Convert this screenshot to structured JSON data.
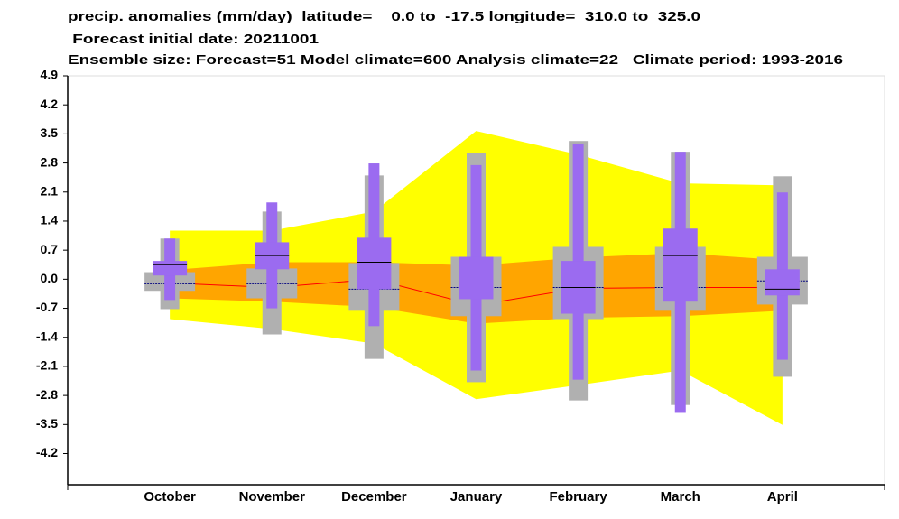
{
  "chart_data": {
    "type": "box",
    "title_lines": [
      "precip. anomalies (mm/day)  latitude=    0.0 to  -17.5 longitude=  310.0 to  325.0",
      " Forecast initial date: 20211001",
      "Ensemble size: Forecast=51 Model climate=600 Analysis climate=22   Climate period: 1993-2016"
    ],
    "categories": [
      "October",
      "November",
      "December",
      "January",
      "February",
      "March",
      "April"
    ],
    "ylim": [
      -4.95,
      4.9
    ],
    "yticks": [
      4.9,
      4.2,
      3.5,
      2.8,
      2.1,
      1.4,
      0.7,
      {
        "value": 0,
        "label": "0.0"
      },
      -0.7,
      -1.4,
      -2.1,
      -2.8,
      -3.5,
      -4.2
    ],
    "bands": [
      {
        "color": "#ffff00",
        "high": [
          1.17,
          1.17,
          1.63,
          3.57,
          3.0,
          2.31,
          2.26
        ],
        "low": [
          -0.96,
          -1.2,
          -1.55,
          -2.89,
          -2.55,
          -2.2,
          -3.51
        ]
      },
      {
        "color": "#ffa500",
        "high": [
          0.22,
          0.41,
          0.41,
          0.33,
          0.52,
          0.63,
          0.46
        ],
        "low": [
          -0.46,
          -0.54,
          -0.67,
          -1.07,
          -0.93,
          -0.89,
          -0.76
        ]
      }
    ],
    "line": {
      "color": "#ff0000",
      "values": [
        -0.09,
        -0.2,
        0.0,
        -0.63,
        -0.22,
        -0.2,
        -0.2
      ]
    },
    "series": [
      {
        "color": "#b0b0b0",
        "median_color": "#000080",
        "whisker_low": [
          -0.72,
          -1.33,
          -1.92,
          -2.48,
          -2.92,
          -3.03,
          -2.35
        ],
        "box_low": [
          -0.28,
          -0.46,
          -0.76,
          -0.89,
          -0.96,
          -0.76,
          -0.61
        ],
        "median": [
          -0.11,
          -0.11,
          -0.24,
          -0.2,
          -0.2,
          -0.2,
          -0.04
        ],
        "box_high": [
          0.17,
          0.26,
          0.39,
          0.54,
          0.78,
          0.78,
          0.54
        ],
        "whisker_high": [
          0.98,
          1.63,
          2.5,
          3.03,
          3.33,
          3.07,
          2.48
        ]
      },
      {
        "color": "#9b6bf0",
        "median_color": "#000000",
        "whisker_low": [
          -0.5,
          -0.7,
          -1.13,
          -2.2,
          -2.42,
          -3.22,
          -1.94
        ],
        "box_low": [
          0.09,
          0.24,
          -0.24,
          -0.48,
          -0.83,
          -0.54,
          -0.39
        ],
        "median": [
          0.35,
          0.57,
          0.41,
          0.15,
          -0.2,
          0.57,
          -0.24
        ],
        "box_high": [
          0.44,
          0.89,
          1.0,
          0.54,
          0.44,
          1.22,
          0.24
        ],
        "whisker_high": [
          0.98,
          1.85,
          2.79,
          2.75,
          3.27,
          3.07,
          2.09
        ]
      }
    ]
  }
}
